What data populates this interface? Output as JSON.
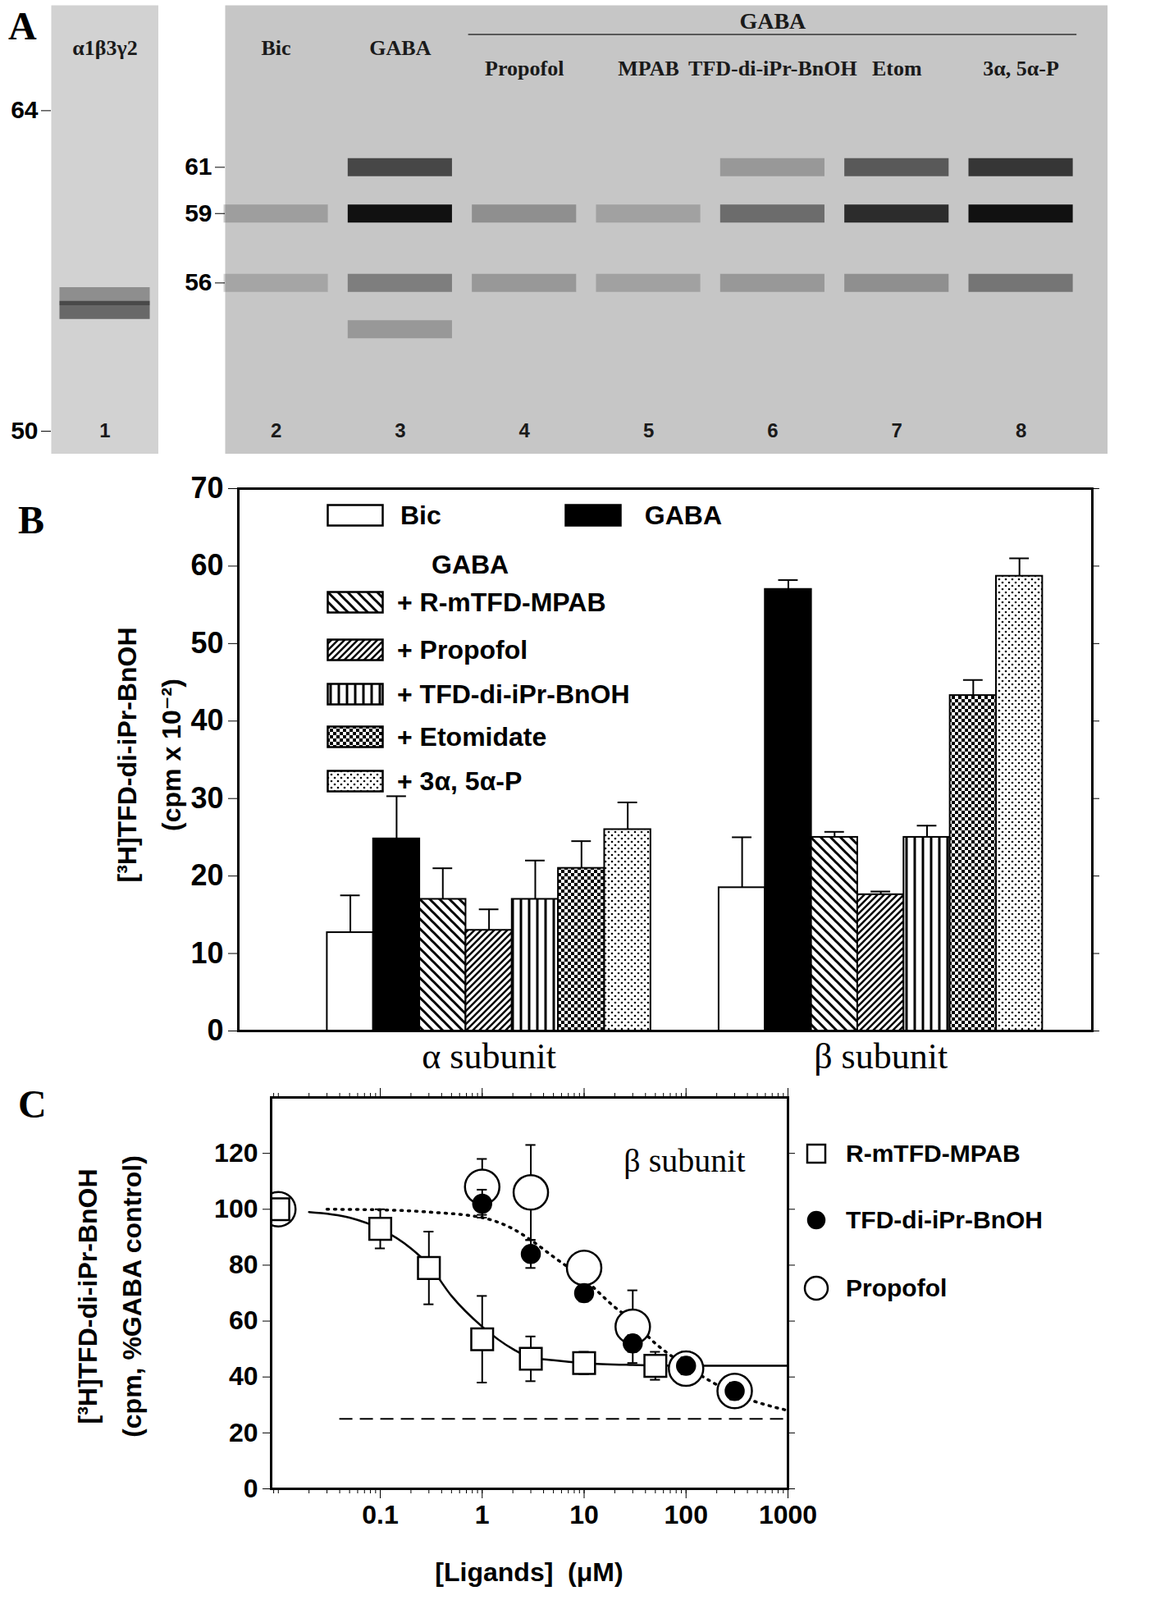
{
  "chart_data": [
    {
      "type": "gel",
      "panel": "A",
      "strips": [
        {
          "ylim": [
            49,
            68.6
          ],
          "yticks": [
            64,
            50
          ],
          "lanes": [
            {
              "lane": 1,
              "label": "α1β3γ2",
              "bands": [
                {
                  "kda": 55.3,
                  "intensity": 0.55
                },
                {
                  "kda": 55.9,
                  "intensity": 0.35
                }
              ]
            }
          ]
        },
        {
          "ylim": [
            48.6,
            68
          ],
          "yticks": [
            61,
            59,
            56
          ],
          "group": {
            "label": "GABA",
            "lanes": [
              4,
              8
            ]
          },
          "lanes": [
            {
              "lane": 2,
              "label": "Bic",
              "bands": [
                {
                  "kda": 59,
                  "intensity": 0.22
                },
                {
                  "kda": 56,
                  "intensity": 0.18
                }
              ]
            },
            {
              "lane": 3,
              "label": "GABA",
              "bands": [
                {
                  "kda": 61,
                  "intensity": 0.7
                },
                {
                  "kda": 59,
                  "intensity": 1
                },
                {
                  "kda": 56,
                  "intensity": 0.4
                },
                {
                  "kda": 54,
                  "intensity": 0.25
                }
              ]
            },
            {
              "lane": 4,
              "label": "Propofol",
              "bands": [
                {
                  "kda": 59,
                  "intensity": 0.3
                },
                {
                  "kda": 56,
                  "intensity": 0.25
                }
              ]
            },
            {
              "lane": 5,
              "label": "MPAB",
              "bands": [
                {
                  "kda": 59,
                  "intensity": 0.2
                },
                {
                  "kda": 56,
                  "intensity": 0.2
                }
              ]
            },
            {
              "lane": 6,
              "label": "TFD-di-iPr-BnOH",
              "bands": [
                {
                  "kda": 61,
                  "intensity": 0.25
                },
                {
                  "kda": 59,
                  "intensity": 0.5
                },
                {
                  "kda": 56,
                  "intensity": 0.25
                }
              ]
            },
            {
              "lane": 7,
              "label": "Etom",
              "bands": [
                {
                  "kda": 61,
                  "intensity": 0.6
                },
                {
                  "kda": 59,
                  "intensity": 0.85
                },
                {
                  "kda": 56,
                  "intensity": 0.3
                }
              ]
            },
            {
              "lane": 8,
              "label": "3α, 5α-P",
              "bands": [
                {
                  "kda": 61,
                  "intensity": 0.8
                },
                {
                  "kda": 59,
                  "intensity": 1
                },
                {
                  "kda": 56,
                  "intensity": 0.45
                }
              ]
            }
          ]
        }
      ]
    },
    {
      "type": "bar",
      "panel": "B",
      "categories": [
        "α subunit",
        "β subunit"
      ],
      "y_label": [
        "[³H]TFD-di-iPr-BnOH",
        "(cpm x 10⁻²)"
      ],
      "ylim": [
        0,
        70
      ],
      "yticks": [
        0,
        10,
        20,
        30,
        40,
        50,
        60,
        70
      ],
      "legend": "top-left",
      "legend_subheading": "GABA",
      "series": [
        {
          "name": "Bic",
          "color": "#ffffff",
          "values": [
            12.7,
            18.5
          ],
          "errors": [
            4.8,
            6.5
          ]
        },
        {
          "name": "GABA",
          "color": "#000000",
          "values": [
            24.8,
            57
          ],
          "errors": [
            5.5,
            1.2
          ]
        },
        {
          "name": "+ R-mTFD-MPAB",
          "color": "#000000",
          "values": [
            17,
            25
          ],
          "errors": [
            4,
            0.7
          ]
        },
        {
          "name": "+ Propofol",
          "color": "#000000",
          "values": [
            13,
            17.6
          ],
          "errors": [
            2.7,
            0.4
          ]
        },
        {
          "name": "+ TFD-di-iPr-BnOH",
          "color": "#000000",
          "values": [
            17,
            25
          ],
          "errors": [
            5,
            1.5
          ]
        },
        {
          "name": "+ Etomidate",
          "color": "#000000",
          "values": [
            21,
            43.3
          ],
          "errors": [
            3.5,
            2
          ]
        },
        {
          "name": "+ 3α, 5α-P",
          "color": "#000000",
          "values": [
            26,
            58.7
          ],
          "errors": [
            3.5,
            2.3
          ]
        }
      ]
    },
    {
      "type": "scatter",
      "panel": "C",
      "log": "x",
      "x_label": "[Ligands]  (μM)",
      "y_label": [
        "[³H]TFD-di-iPr-BnOH",
        "(cpm, %GABA control)"
      ],
      "annotation": "β subunit",
      "xlim": [
        0.0085,
        1000
      ],
      "xticks": [
        0.1,
        1,
        10,
        100,
        1000
      ],
      "ylim": [
        0,
        140
      ],
      "yticks": [
        0,
        20,
        40,
        60,
        80,
        100,
        120
      ],
      "legend": "right",
      "series": [
        {
          "name": "R-mTFD-MPAB",
          "marker": "square",
          "color": "#ffffff",
          "x": [
            0.01,
            0.1,
            0.3,
            1,
            3,
            10,
            50
          ],
          "values": [
            100,
            93,
            79,
            53.5,
            46.5,
            45,
            44
          ],
          "errors": [
            0,
            7,
            13,
            15.5,
            8,
            4,
            5
          ]
        },
        {
          "name": "TFD-di-iPr-BnOH",
          "marker": "circle",
          "color": "#000000",
          "x": [
            0.01,
            1,
            3,
            10,
            30,
            100,
            300
          ],
          "values": [
            100,
            102,
            84,
            70,
            52,
            44,
            35
          ],
          "errors": [
            0,
            5,
            5,
            3,
            3,
            3,
            3
          ]
        },
        {
          "name": "Propofol",
          "marker": "circle",
          "color": "#ffffff",
          "x": [
            0.01,
            1,
            3,
            10,
            30,
            100,
            300
          ],
          "values": [
            100,
            108,
            106,
            79,
            58,
            43,
            35
          ],
          "errors": [
            0,
            10,
            17,
            5,
            13,
            6,
            3
          ]
        }
      ],
      "fits": [
        {
          "line_style": "solid",
          "x": [
            0.02,
            0.05,
            0.1,
            0.2,
            0.3,
            0.5,
            1,
            2,
            3,
            5,
            10,
            30,
            100,
            1000
          ],
          "y": [
            99,
            97,
            93,
            86,
            80,
            69,
            58,
            50,
            47,
            46,
            45,
            44.3,
            44,
            44
          ]
        },
        {
          "line_style": "dotted",
          "x": [
            0.03,
            0.1,
            0.3,
            1,
            2,
            3,
            5,
            10,
            20,
            30,
            50,
            100,
            300,
            1000
          ],
          "y": [
            100,
            99.8,
            99,
            97,
            93,
            89,
            83,
            75,
            65,
            60,
            52,
            44,
            34,
            28
          ]
        }
      ],
      "reference_line": {
        "y": 25,
        "x": [
          0.04,
          1000
        ],
        "line_style": "dashed"
      }
    }
  ]
}
